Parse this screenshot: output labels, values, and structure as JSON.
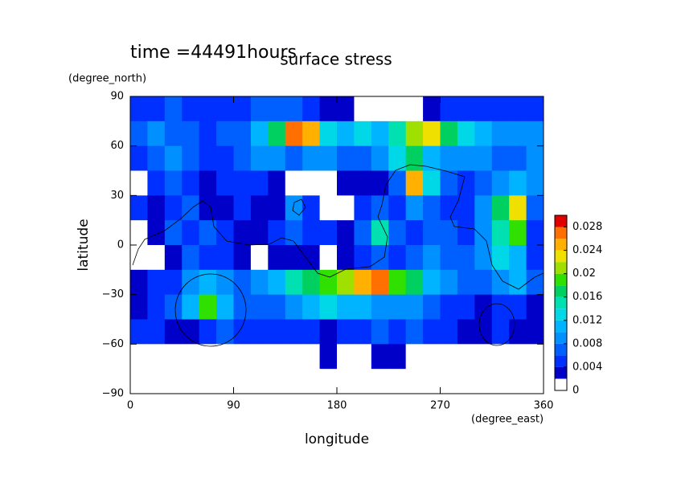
{
  "chart_data": {
    "type": "contour",
    "time_label": "time =44491hours",
    "title": "surface stress",
    "y_unit": "(degree_north)",
    "y_label": "latitude",
    "x_label": "longitude",
    "x_unit": "(degree_east)",
    "xlim": [
      0,
      360
    ],
    "ylim": [
      -90,
      90
    ],
    "xticks": [
      0,
      90,
      180,
      270,
      360
    ],
    "yticks": [
      {
        "value": -90,
        "label": "−90"
      },
      {
        "value": -60,
        "label": "−60"
      },
      {
        "value": -30,
        "label": "−30"
      },
      0,
      30,
      60,
      90
    ],
    "xbins": [
      0,
      15,
      30,
      45,
      60,
      75,
      90,
      105,
      120,
      135,
      150,
      165,
      180,
      195,
      210,
      225,
      240,
      255,
      270,
      285,
      300,
      315,
      330,
      345,
      360
    ],
    "ybins": [
      90,
      75,
      60,
      45,
      30,
      15,
      0,
      -15,
      -30,
      -45,
      -60,
      -75,
      -90
    ],
    "z": [
      [
        0.004,
        0.005,
        0.006,
        0.005,
        0.004,
        0.004,
        0.005,
        0.006,
        0.007,
        0.006,
        0.004,
        0.003,
        0.002,
        0.001,
        0.001,
        0.001,
        0.001,
        0.002,
        0.004,
        0.005,
        0.005,
        0.004,
        0.004,
        0.004
      ],
      [
        0.006,
        0.008,
        0.007,
        0.006,
        0.005,
        0.006,
        0.007,
        0.01,
        0.016,
        0.026,
        0.024,
        0.012,
        0.01,
        0.012,
        0.01,
        0.014,
        0.02,
        0.022,
        0.016,
        0.012,
        0.01,
        0.008,
        0.008,
        0.008
      ],
      [
        0.004,
        0.006,
        0.008,
        0.006,
        0.005,
        0.005,
        0.007,
        0.009,
        0.008,
        0.006,
        0.008,
        0.008,
        0.006,
        0.007,
        0.009,
        0.012,
        0.016,
        0.01,
        0.008,
        0.008,
        0.008,
        0.007,
        0.007,
        0.009
      ],
      [
        0.001,
        0.004,
        0.006,
        0.004,
        0.003,
        0.004,
        0.005,
        0.004,
        0.003,
        0.001,
        0.001,
        0.001,
        0.002,
        0.003,
        0.003,
        0.006,
        0.024,
        0.012,
        0.006,
        0.005,
        0.006,
        0.008,
        0.01,
        0.008
      ],
      [
        0.004,
        0.002,
        0.005,
        0.006,
        0.003,
        0.002,
        0.004,
        0.002,
        0.003,
        0.008,
        0.004,
        0.001,
        0.001,
        0.004,
        0.006,
        0.004,
        0.008,
        0.006,
        0.005,
        0.004,
        0.008,
        0.016,
        0.022,
        0.006
      ],
      [
        0.001,
        0.003,
        0.006,
        0.005,
        0.006,
        0.004,
        0.002,
        0.003,
        0.004,
        0.006,
        0.005,
        0.004,
        0.003,
        0.007,
        0.014,
        0.006,
        0.004,
        0.007,
        0.006,
        0.005,
        0.008,
        0.014,
        0.018,
        0.005
      ],
      [
        0.001,
        0.001,
        0.003,
        0.006,
        0.005,
        0.004,
        0.002,
        0.001,
        0.002,
        0.003,
        0.002,
        0.001,
        0.003,
        0.005,
        0.006,
        0.005,
        0.007,
        0.008,
        0.006,
        0.006,
        0.008,
        0.012,
        0.01,
        0.004
      ],
      [
        0.003,
        0.004,
        0.005,
        0.008,
        0.01,
        0.008,
        0.006,
        0.008,
        0.01,
        0.014,
        0.016,
        0.018,
        0.02,
        0.024,
        0.026,
        0.018,
        0.016,
        0.01,
        0.008,
        0.006,
        0.006,
        0.008,
        0.01,
        0.006
      ],
      [
        0.003,
        0.004,
        0.006,
        0.01,
        0.018,
        0.01,
        0.006,
        0.006,
        0.006,
        0.008,
        0.01,
        0.012,
        0.01,
        0.01,
        0.008,
        0.008,
        0.008,
        0.006,
        0.004,
        0.004,
        0.003,
        0.004,
        0.004,
        0.003
      ],
      [
        0.004,
        0.004,
        0.003,
        0.003,
        0.005,
        0.006,
        0.005,
        0.004,
        0.004,
        0.005,
        0.004,
        0.002,
        0.004,
        0.005,
        0.006,
        0.005,
        0.006,
        0.004,
        0.004,
        0.003,
        0.002,
        0.004,
        0.003,
        0.002
      ],
      [
        0.001,
        0.001,
        0.001,
        0.001,
        0.001,
        0.001,
        0.001,
        0.001,
        0.001,
        0.001,
        0.001,
        0.003,
        0.001,
        0.001,
        0.002,
        0.003,
        0.001,
        0.001,
        0.001,
        0.001,
        0.001,
        0.001,
        0.001,
        0.001
      ],
      [
        0,
        0,
        0,
        0,
        0,
        0,
        0,
        0,
        0,
        0,
        0,
        0,
        0,
        0,
        0,
        0,
        0,
        0,
        0,
        0,
        0,
        0,
        0,
        0
      ]
    ],
    "levels": [
      0,
      0.002,
      0.004,
      0.006,
      0.008,
      0.01,
      0.012,
      0.014,
      0.016,
      0.018,
      0.02,
      0.022,
      0.024,
      0.026,
      0.028,
      0.03
    ],
    "colors": [
      "#ffffff",
      "#0000c8",
      "#0030ff",
      "#0060ff",
      "#0090ff",
      "#00b4ff",
      "#00d8e8",
      "#00e0b0",
      "#00d060",
      "#30e000",
      "#a0e000",
      "#f0e000",
      "#ffb000",
      "#ff7000",
      "#e00000"
    ],
    "clim": [
      0,
      0.03
    ],
    "cticks": [
      0,
      0.004,
      0.008,
      0.012,
      0.016,
      0.02,
      0.024,
      0.028
    ]
  }
}
